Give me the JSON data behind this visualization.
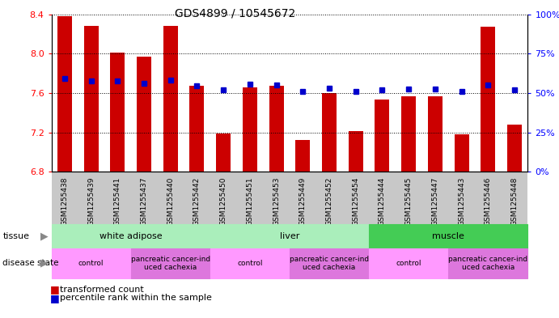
{
  "title": "GDS4899 / 10545672",
  "samples": [
    "GSM1255438",
    "GSM1255439",
    "GSM1255441",
    "GSM1255437",
    "GSM1255440",
    "GSM1255442",
    "GSM1255450",
    "GSM1255451",
    "GSM1255453",
    "GSM1255449",
    "GSM1255452",
    "GSM1255454",
    "GSM1255444",
    "GSM1255445",
    "GSM1255447",
    "GSM1255443",
    "GSM1255446",
    "GSM1255448"
  ],
  "red_values": [
    8.38,
    8.28,
    8.01,
    7.97,
    8.28,
    7.67,
    7.19,
    7.66,
    7.67,
    7.12,
    7.6,
    7.21,
    7.53,
    7.57,
    7.57,
    7.18,
    8.27,
    7.28
  ],
  "blue_values": [
    7.75,
    7.72,
    7.72,
    7.7,
    7.73,
    7.67,
    7.63,
    7.69,
    7.68,
    7.62,
    7.65,
    7.62,
    7.63,
    7.64,
    7.64,
    7.62,
    7.68,
    7.63
  ],
  "ylim_left": [
    6.8,
    8.4
  ],
  "ylim_right": [
    0,
    100
  ],
  "yticks_left": [
    6.8,
    7.2,
    7.6,
    8.0,
    8.4
  ],
  "yticks_right": [
    0,
    25,
    50,
    75,
    100
  ],
  "bar_color": "#cc0000",
  "dot_color": "#0000cc",
  "bar_bottom": 6.8,
  "tissue_groups": [
    {
      "label": "white adipose",
      "start": 0,
      "end": 5,
      "color": "#aaeebb"
    },
    {
      "label": "liver",
      "start": 6,
      "end": 11,
      "color": "#aaeebb"
    },
    {
      "label": "muscle",
      "start": 12,
      "end": 17,
      "color": "#44cc55"
    }
  ],
  "disease_groups": [
    {
      "label": "control",
      "start": 0,
      "end": 2,
      "color": "#ff99ff"
    },
    {
      "label": "pancreatic cancer-ind\nuced cachexia",
      "start": 3,
      "end": 5,
      "color": "#dd77dd"
    },
    {
      "label": "control",
      "start": 6,
      "end": 8,
      "color": "#ff99ff"
    },
    {
      "label": "pancreatic cancer-ind\nuced cachexia",
      "start": 9,
      "end": 11,
      "color": "#dd77dd"
    },
    {
      "label": "control",
      "start": 12,
      "end": 14,
      "color": "#ff99ff"
    },
    {
      "label": "pancreatic cancer-ind\nuced cachexia",
      "start": 15,
      "end": 17,
      "color": "#dd77dd"
    }
  ],
  "legend_labels": [
    "transformed count",
    "percentile rank within the sample"
  ],
  "legend_colors": [
    "#cc0000",
    "#0000cc"
  ],
  "xtick_bg": "#c8c8c8",
  "tick_label_fontsize": 6.5,
  "ytick_fontsize": 8,
  "title_fontsize": 10
}
